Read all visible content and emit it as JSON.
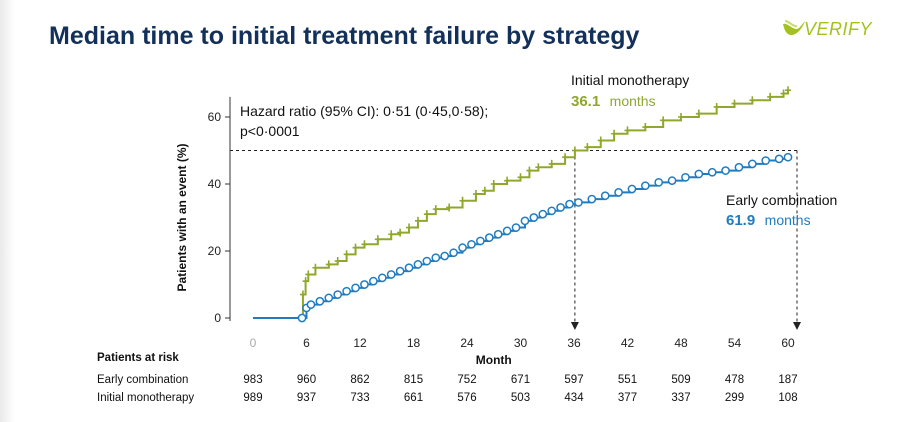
{
  "title": "Median time to initial treatment failure by strategy",
  "logo": {
    "text": "VERIFY",
    "color": "#a4c21f"
  },
  "colors": {
    "monotherapy": "#8fa82b",
    "combination": "#1f7cc1",
    "axis": "#333333",
    "title": "#12305a"
  },
  "chart_data": {
    "type": "line",
    "xlabel": "Month",
    "ylabel": "Patients with an event (%)",
    "xticks": [
      0,
      6,
      12,
      18,
      24,
      30,
      36,
      42,
      48,
      54,
      60
    ],
    "yticks": [
      0,
      20,
      40,
      60
    ],
    "xlim": [
      0,
      60
    ],
    "ylim": [
      0,
      70
    ],
    "annotation": {
      "line1": "Hazard ratio (95% CI): 0·51 (0·45,0·58);",
      "line2": "p<0·0001"
    },
    "median_reference": {
      "y": 50
    },
    "series": [
      {
        "name": "Initial monotherapy",
        "median_value": "36.1",
        "median_unit": "months",
        "median_x": 36.1,
        "censor_marker": "plus",
        "points": [
          [
            0,
            0
          ],
          [
            5.5,
            0
          ],
          [
            5.6,
            7
          ],
          [
            5.9,
            11
          ],
          [
            6.2,
            13
          ],
          [
            7,
            15
          ],
          [
            8.5,
            16
          ],
          [
            9.5,
            17
          ],
          [
            10.5,
            19
          ],
          [
            11.5,
            21
          ],
          [
            12.5,
            22
          ],
          [
            14,
            23.5
          ],
          [
            15.5,
            25
          ],
          [
            16.5,
            25.5
          ],
          [
            17.5,
            27
          ],
          [
            18.5,
            29
          ],
          [
            19.5,
            31
          ],
          [
            20.5,
            32.5
          ],
          [
            22,
            33
          ],
          [
            23.5,
            35
          ],
          [
            25,
            37
          ],
          [
            26,
            38
          ],
          [
            27,
            40
          ],
          [
            28.5,
            41
          ],
          [
            30,
            42
          ],
          [
            31,
            44
          ],
          [
            32,
            45
          ],
          [
            33.5,
            46
          ],
          [
            35,
            48
          ],
          [
            36.1,
            50
          ],
          [
            37.5,
            51
          ],
          [
            39,
            53
          ],
          [
            40.5,
            55
          ],
          [
            42,
            56
          ],
          [
            44,
            57
          ],
          [
            46,
            59
          ],
          [
            48,
            60
          ],
          [
            50,
            61
          ],
          [
            52,
            63
          ],
          [
            54,
            64
          ],
          [
            56,
            65
          ],
          [
            58,
            66
          ],
          [
            59.5,
            67
          ],
          [
            60,
            68
          ]
        ]
      },
      {
        "name": "Early combination",
        "median_value": "61.9",
        "median_unit": "months",
        "median_x": 61.9,
        "censor_marker": "circle",
        "points": [
          [
            0,
            0
          ],
          [
            5.5,
            0
          ],
          [
            6,
            3
          ],
          [
            6.5,
            4
          ],
          [
            7.5,
            5
          ],
          [
            8.5,
            6
          ],
          [
            9.5,
            7
          ],
          [
            10.5,
            8
          ],
          [
            11.5,
            9
          ],
          [
            12.5,
            10
          ],
          [
            13.5,
            11
          ],
          [
            14.5,
            12
          ],
          [
            15.5,
            13
          ],
          [
            16.5,
            14
          ],
          [
            17.5,
            15
          ],
          [
            18.5,
            16
          ],
          [
            19.5,
            17
          ],
          [
            20.5,
            18
          ],
          [
            21.5,
            18.5
          ],
          [
            22.5,
            19.5
          ],
          [
            23.5,
            21
          ],
          [
            24.5,
            22
          ],
          [
            25.5,
            23
          ],
          [
            26.5,
            24
          ],
          [
            27.5,
            25
          ],
          [
            28.5,
            26
          ],
          [
            29.5,
            27
          ],
          [
            30.5,
            29
          ],
          [
            31.5,
            30
          ],
          [
            32.5,
            31
          ],
          [
            33.5,
            32
          ],
          [
            34.5,
            33
          ],
          [
            35.5,
            34
          ],
          [
            36.5,
            34.5
          ],
          [
            38,
            35.5
          ],
          [
            39.5,
            36.5
          ],
          [
            41,
            37.5
          ],
          [
            42.5,
            38.5
          ],
          [
            44,
            39.5
          ],
          [
            45.5,
            40.5
          ],
          [
            47,
            41
          ],
          [
            48.5,
            42
          ],
          [
            50,
            43
          ],
          [
            51.5,
            43.5
          ],
          [
            53,
            44
          ],
          [
            54.5,
            45
          ],
          [
            56,
            46
          ],
          [
            57.5,
            47
          ],
          [
            59,
            47.5
          ],
          [
            60,
            48
          ]
        ]
      }
    ]
  },
  "risk_table": {
    "header": "Patients at risk",
    "rows": [
      {
        "label": "Early combination",
        "values": [
          "983",
          "960",
          "862",
          "815",
          "752",
          "671",
          "597",
          "551",
          "509",
          "478",
          "187"
        ]
      },
      {
        "label": "Initial monotherapy",
        "values": [
          "989",
          "937",
          "733",
          "661",
          "576",
          "503",
          "434",
          "377",
          "337",
          "299",
          "108"
        ]
      }
    ]
  }
}
